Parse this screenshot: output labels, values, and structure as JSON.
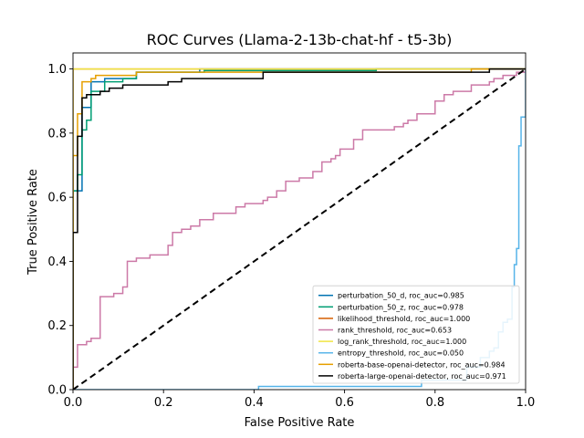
{
  "chart_data": {
    "type": "line",
    "title": "ROC Curves (Llama-2-13b-chat-hf - t5-3b)",
    "xlabel": "False Positive Rate",
    "ylabel": "True Positive Rate",
    "xlim": [
      0,
      1
    ],
    "ylim": [
      0,
      1.05
    ],
    "xticks": [
      "0.0",
      "0.2",
      "0.4",
      "0.6",
      "0.8",
      "1.0"
    ],
    "yticks": [
      "0.0",
      "0.2",
      "0.4",
      "0.6",
      "0.8",
      "1.0"
    ],
    "grid": false,
    "legend_position": "lower-right",
    "series": [
      {
        "name": "perturbation_50_d, roc_auc=0.985",
        "color": "#0072b2",
        "x": [
          0,
          0,
          0.02,
          0.02,
          0.04,
          0.04,
          0.07,
          0.07,
          0.14,
          0.14,
          0.28,
          0.28,
          1.0
        ],
        "y": [
          0,
          0.62,
          0.62,
          0.88,
          0.88,
          0.96,
          0.96,
          0.97,
          0.97,
          0.99,
          0.99,
          1.0,
          1.0
        ]
      },
      {
        "name": "perturbation_50_z, roc_auc=0.978",
        "color": "#009e73",
        "x": [
          0,
          0,
          0.01,
          0.01,
          0.02,
          0.02,
          0.03,
          0.03,
          0.04,
          0.04,
          0.07,
          0.07,
          0.11,
          0.11,
          0.14,
          0.14,
          0.29,
          0.29,
          0.67,
          0.67,
          1.0
        ],
        "y": [
          0,
          0.62,
          0.62,
          0.67,
          0.67,
          0.81,
          0.81,
          0.84,
          0.84,
          0.93,
          0.93,
          0.96,
          0.96,
          0.97,
          0.97,
          0.99,
          0.99,
          0.995,
          0.995,
          1.0,
          1.0
        ]
      },
      {
        "name": "likelihood_threshold, roc_auc=1.000",
        "color": "#d55e00",
        "x": [
          0,
          0,
          1.0
        ],
        "y": [
          0,
          1.0,
          1.0
        ]
      },
      {
        "name": "rank_threshold, roc_auc=0.653",
        "color": "#cc79a7",
        "x": [
          0,
          0,
          0.01,
          0.01,
          0.03,
          0.03,
          0.04,
          0.04,
          0.06,
          0.06,
          0.09,
          0.09,
          0.11,
          0.11,
          0.12,
          0.12,
          0.14,
          0.14,
          0.17,
          0.17,
          0.21,
          0.21,
          0.22,
          0.22,
          0.24,
          0.24,
          0.26,
          0.26,
          0.28,
          0.28,
          0.31,
          0.31,
          0.36,
          0.36,
          0.38,
          0.38,
          0.42,
          0.42,
          0.43,
          0.43,
          0.45,
          0.45,
          0.47,
          0.47,
          0.5,
          0.5,
          0.53,
          0.53,
          0.55,
          0.55,
          0.57,
          0.57,
          0.58,
          0.58,
          0.59,
          0.59,
          0.62,
          0.62,
          0.64,
          0.64,
          0.71,
          0.71,
          0.73,
          0.73,
          0.74,
          0.74,
          0.76,
          0.76,
          0.8,
          0.8,
          0.8,
          0.8,
          0.82,
          0.82,
          0.84,
          0.84,
          0.88,
          0.88,
          0.92,
          0.92,
          0.93,
          0.93,
          0.95,
          0.95,
          0.97,
          0.97,
          0.98,
          0.98,
          1.0,
          1.0
        ],
        "y": [
          0,
          0.07,
          0.07,
          0.14,
          0.14,
          0.15,
          0.15,
          0.16,
          0.16,
          0.29,
          0.29,
          0.3,
          0.3,
          0.32,
          0.32,
          0.4,
          0.4,
          0.41,
          0.41,
          0.42,
          0.42,
          0.45,
          0.45,
          0.49,
          0.49,
          0.5,
          0.5,
          0.51,
          0.51,
          0.53,
          0.53,
          0.55,
          0.55,
          0.57,
          0.57,
          0.58,
          0.58,
          0.59,
          0.59,
          0.6,
          0.6,
          0.62,
          0.62,
          0.65,
          0.65,
          0.66,
          0.66,
          0.68,
          0.68,
          0.71,
          0.71,
          0.72,
          0.72,
          0.73,
          0.73,
          0.75,
          0.75,
          0.78,
          0.78,
          0.81,
          0.81,
          0.82,
          0.82,
          0.83,
          0.83,
          0.84,
          0.84,
          0.86,
          0.86,
          0.9,
          0.9,
          0.9,
          0.9,
          0.92,
          0.92,
          0.93,
          0.93,
          0.95,
          0.95,
          0.96,
          0.96,
          0.97,
          0.97,
          0.98,
          0.98,
          0.98,
          0.98,
          0.99,
          0.99,
          1.0
        ]
      },
      {
        "name": "log_rank_threshold, roc_auc=1.000",
        "color": "#f0e442",
        "x": [
          0,
          0,
          1.0
        ],
        "y": [
          0,
          1.0,
          1.0
        ]
      },
      {
        "name": "entropy_threshold, roc_auc=0.050",
        "color": "#56b4e9",
        "x": [
          0,
          0.41,
          0.41,
          0.77,
          0.77,
          0.87,
          0.87,
          0.9,
          0.9,
          0.92,
          0.92,
          0.93,
          0.93,
          0.94,
          0.94,
          0.95,
          0.95,
          0.96,
          0.96,
          0.97,
          0.97,
          0.975,
          0.975,
          0.98,
          0.98,
          0.985,
          0.985,
          0.99,
          0.99,
          1.0,
          1.0
        ],
        "y": [
          0,
          0,
          0.01,
          0.01,
          0.03,
          0.03,
          0.07,
          0.07,
          0.1,
          0.1,
          0.12,
          0.12,
          0.13,
          0.13,
          0.18,
          0.18,
          0.21,
          0.21,
          0.22,
          0.22,
          0.32,
          0.32,
          0.39,
          0.39,
          0.44,
          0.44,
          0.76,
          0.76,
          0.85,
          0.85,
          1.0
        ]
      },
      {
        "name": "roberta-base-openai-detector, roc_auc=0.984",
        "color": "#e69f00",
        "x": [
          0,
          0,
          0.01,
          0.01,
          0.02,
          0.02,
          0.04,
          0.04,
          0.05,
          0.05,
          0.14,
          0.14,
          0.88,
          0.88,
          1.0
        ],
        "y": [
          0,
          0.73,
          0.73,
          0.86,
          0.86,
          0.96,
          0.96,
          0.97,
          0.97,
          0.98,
          0.98,
          0.99,
          0.99,
          1.0,
          1.0
        ]
      },
      {
        "name": "roberta-large-openai-detector, roc_auc=0.971",
        "color": "#000000",
        "x": [
          0,
          0,
          0.01,
          0.01,
          0.02,
          0.02,
          0.03,
          0.03,
          0.06,
          0.06,
          0.08,
          0.08,
          0.11,
          0.11,
          0.21,
          0.21,
          0.24,
          0.24,
          0.42,
          0.42,
          0.92,
          0.92,
          1.0
        ],
        "y": [
          0,
          0.49,
          0.49,
          0.79,
          0.79,
          0.91,
          0.91,
          0.92,
          0.92,
          0.93,
          0.93,
          0.94,
          0.94,
          0.95,
          0.95,
          0.96,
          0.96,
          0.97,
          0.97,
          0.99,
          0.99,
          1.0,
          1.0
        ]
      }
    ],
    "reference_line": {
      "x": [
        0,
        1
      ],
      "y": [
        0,
        1
      ],
      "color": "#000000",
      "style": "dashed"
    }
  }
}
